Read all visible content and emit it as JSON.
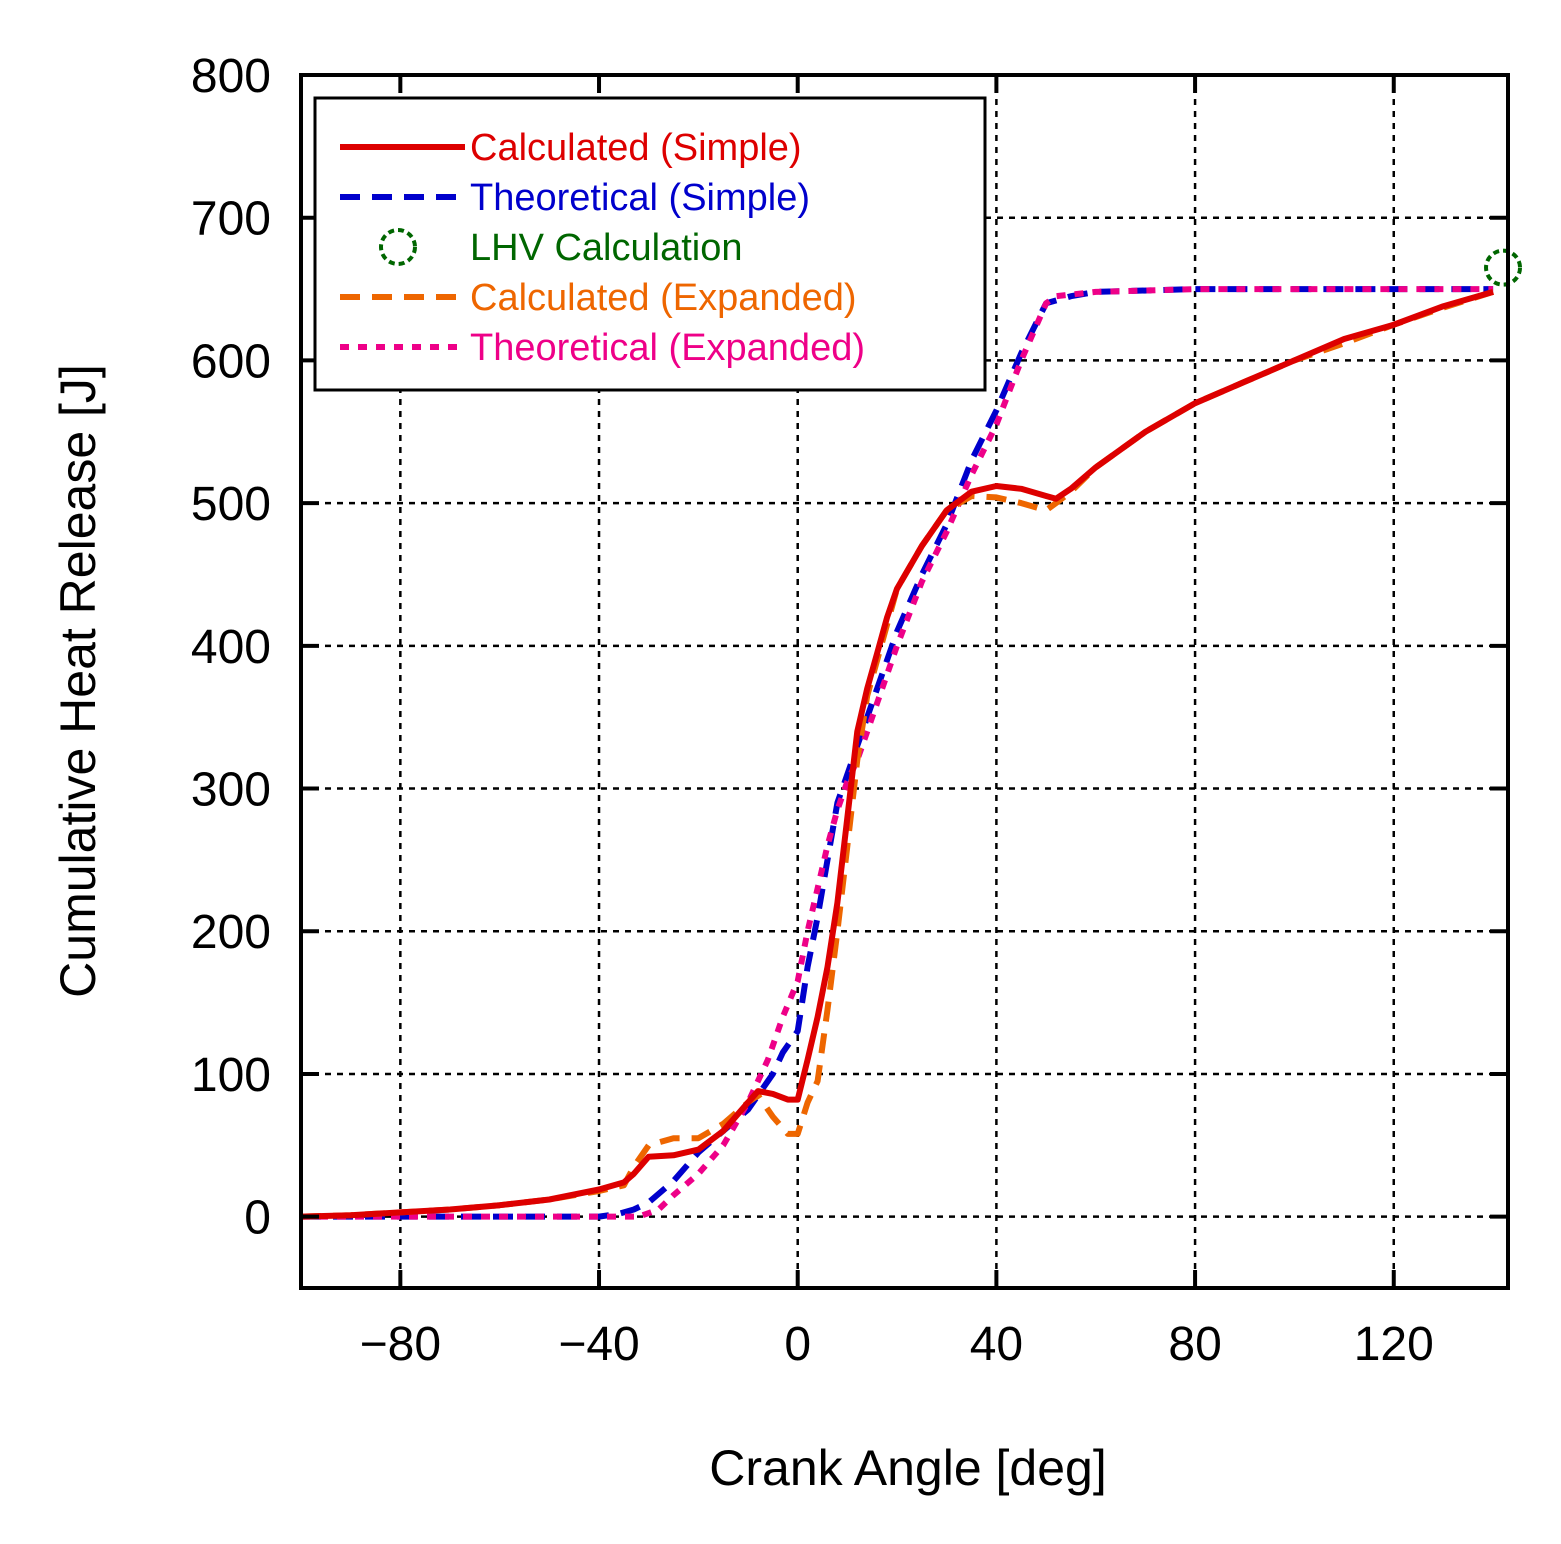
{
  "chart_data": {
    "type": "line",
    "xlabel": "Crank Angle [deg]",
    "ylabel": "Cumulative Heat Release [J]",
    "xlim": [
      -100,
      143
    ],
    "ylim": [
      -50,
      800
    ],
    "xticks": [
      -80,
      -40,
      0,
      40,
      80,
      120
    ],
    "xtick_labels": [
      "−80",
      "−40",
      "0",
      "40",
      "80",
      "120"
    ],
    "yticks": [
      0,
      100,
      200,
      300,
      400,
      500,
      600,
      700,
      800
    ],
    "ytick_labels": [
      "0",
      "100",
      "200",
      "300",
      "400",
      "500",
      "600",
      "700",
      "800"
    ],
    "grid": true,
    "legend_position": "top-left",
    "series": [
      {
        "name": "Calculated (Simple)",
        "color": "#dd0000",
        "style": "solid",
        "x": [
          -100,
          -90,
          -80,
          -70,
          -60,
          -50,
          -40,
          -35,
          -33,
          -30,
          -25,
          -20,
          -15,
          -10,
          -8,
          -5,
          -2,
          0,
          2,
          4,
          6,
          8,
          10,
          12,
          14,
          16,
          18,
          20,
          25,
          30,
          35,
          40,
          45,
          50,
          52,
          55,
          60,
          70,
          80,
          90,
          100,
          110,
          120,
          130,
          140
        ],
        "y": [
          0,
          1,
          3,
          5,
          8,
          12,
          19,
          24,
          30,
          42,
          43,
          47,
          60,
          80,
          88,
          86,
          82,
          82,
          110,
          140,
          175,
          220,
          280,
          340,
          370,
          395,
          420,
          440,
          470,
          495,
          508,
          512,
          510,
          505,
          503,
          510,
          525,
          550,
          570,
          585,
          600,
          615,
          625,
          638,
          648
        ]
      },
      {
        "name": "Theoretical (Simple)",
        "color": "#0000cc",
        "style": "dashed",
        "x": [
          -100,
          -60,
          -40,
          -36,
          -33,
          -30,
          -25,
          -20,
          -15,
          -10,
          -5,
          -3,
          0,
          2,
          4,
          6,
          8,
          10,
          12,
          15,
          20,
          25,
          30,
          35,
          40,
          45,
          50,
          55,
          60,
          80,
          100,
          120,
          140
        ],
        "y": [
          0,
          0,
          0,
          2,
          5,
          10,
          25,
          45,
          60,
          75,
          100,
          115,
          130,
          175,
          210,
          250,
          290,
          310,
          330,
          360,
          410,
          450,
          485,
          530,
          565,
          605,
          640,
          645,
          648,
          650,
          650,
          650,
          650
        ]
      },
      {
        "name": "LHV Calculation",
        "color": "#006600",
        "style": "marker",
        "x": [
          142
        ],
        "y": [
          665
        ]
      },
      {
        "name": "Calculated (Expanded)",
        "color": "#ee6600",
        "style": "dashed",
        "x": [
          -100,
          -90,
          -80,
          -70,
          -60,
          -50,
          -40,
          -35,
          -33,
          -30,
          -25,
          -20,
          -15,
          -10,
          -8,
          -5,
          -2,
          0,
          2,
          4,
          6,
          8,
          10,
          12,
          14,
          16,
          18,
          20,
          25,
          30,
          35,
          40,
          45,
          50,
          52,
          55,
          60,
          70,
          80,
          90,
          100,
          110,
          120,
          130,
          140
        ],
        "y": [
          0,
          1,
          3,
          5,
          8,
          12,
          18,
          22,
          35,
          50,
          55,
          55,
          65,
          80,
          85,
          70,
          58,
          58,
          80,
          95,
          145,
          200,
          260,
          320,
          365,
          390,
          415,
          440,
          470,
          495,
          505,
          504,
          500,
          495,
          500,
          508,
          525,
          550,
          570,
          585,
          600,
          612,
          625,
          637,
          648
        ]
      },
      {
        "name": "Theoretical (Expanded)",
        "color": "#ee0088",
        "style": "dotted",
        "x": [
          -100,
          -60,
          -40,
          -32,
          -28,
          -25,
          -20,
          -15,
          -10,
          -6,
          -3,
          0,
          2,
          4,
          6,
          8,
          10,
          12,
          15,
          20,
          25,
          30,
          35,
          40,
          45,
          50,
          52,
          60,
          80,
          100,
          120,
          140
        ],
        "y": [
          0,
          0,
          0,
          0,
          5,
          15,
          30,
          50,
          80,
          110,
          140,
          165,
          200,
          230,
          260,
          285,
          305,
          320,
          350,
          400,
          445,
          480,
          520,
          555,
          600,
          640,
          645,
          648,
          650,
          650,
          650,
          650
        ]
      }
    ]
  }
}
